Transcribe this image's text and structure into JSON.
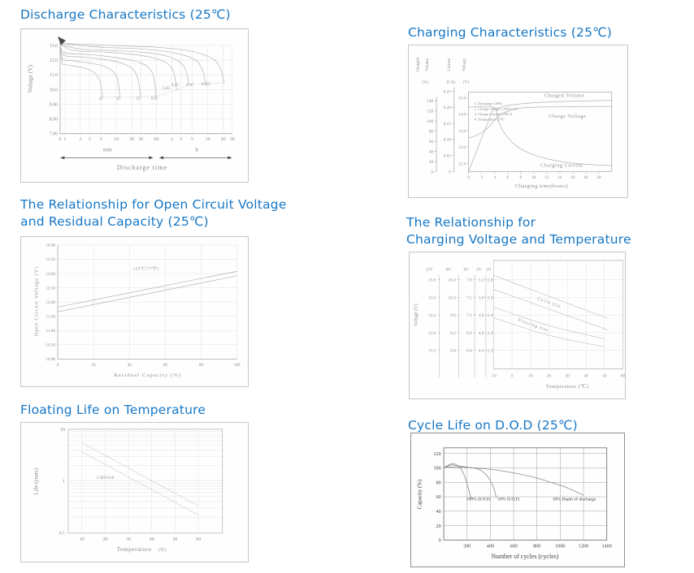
{
  "theme": {
    "page_bg": "#ffffff",
    "title_color": "#1677c5",
    "card_border": "#c6c6c6",
    "card_border_dark": "#8f8f8f",
    "grid": "#dcdcdc",
    "axis": "#acacac",
    "curve": "#b2b2b2",
    "text": "#8a8a8a",
    "dark_grid": "#9e9e9e",
    "dark_axis": "#767676",
    "dark_curve": "#8a8a8a",
    "dark_text": "#3d3d3d",
    "arrow": "#4a4a4a"
  },
  "chart_data": [
    {
      "id": "discharge",
      "type": "line",
      "title": "Discharge Characteristics (25℃)",
      "ylabel": "Voltage (V)",
      "xlabel": "Discharge time",
      "x_unit_segments": [
        "min",
        "h"
      ],
      "y_ticks": [
        13,
        12,
        11,
        10,
        9,
        8,
        7
      ],
      "y_tick_labels": [
        "13.0",
        "12.0",
        "11.0",
        "10.0",
        "9.00",
        "8.00",
        "7.00"
      ],
      "x_tick_minutes": [
        0,
        1,
        2,
        3,
        5,
        10,
        20,
        30,
        60,
        120,
        180,
        300,
        600,
        1200,
        1800
      ],
      "x_tick_labels": [
        "0",
        "1",
        "2",
        "3",
        "5",
        "10",
        "20",
        "30",
        "60",
        "2",
        "3",
        "5",
        "10",
        "20",
        "30"
      ],
      "series": [
        {
          "label": "3C",
          "label_at": [
            5,
            9.3
          ],
          "points": [
            [
              0,
              13.1
            ],
            [
              0.4,
              11.85
            ],
            [
              1,
              11.7
            ],
            [
              2,
              11.52
            ],
            [
              3,
              11.33
            ],
            [
              4,
              11.05
            ],
            [
              4.8,
              10.55
            ],
            [
              5.2,
              9.9
            ],
            [
              5.4,
              9.5
            ]
          ]
        },
        {
          "label": "2C",
          "label_at": [
            11,
            9.3
          ],
          "points": [
            [
              0,
              13.1
            ],
            [
              0.5,
              12.1
            ],
            [
              1.5,
              11.95
            ],
            [
              3,
              11.8
            ],
            [
              5,
              11.65
            ],
            [
              7,
              11.45
            ],
            [
              9,
              11.15
            ],
            [
              10.5,
              10.7
            ],
            [
              11.5,
              9.9
            ],
            [
              11.8,
              9.5
            ]
          ]
        },
        {
          "label": "1C",
          "label_at": [
            27,
            9.3
          ],
          "points": [
            [
              0,
              13.1
            ],
            [
              0.7,
              12.35
            ],
            [
              2,
              12.22
            ],
            [
              5,
              12.08
            ],
            [
              10,
              11.9
            ],
            [
              16,
              11.65
            ],
            [
              22,
              11.3
            ],
            [
              26,
              10.8
            ],
            [
              28.5,
              10.0
            ],
            [
              29.5,
              9.5
            ]
          ]
        },
        {
          "label": "0.6C",
          "label_at": [
            56,
            9.32
          ],
          "points": [
            [
              0,
              13.1
            ],
            [
              1,
              12.5
            ],
            [
              3,
              12.38
            ],
            [
              8,
              12.22
            ],
            [
              18,
              12.02
            ],
            [
              30,
              11.8
            ],
            [
              42,
              11.5
            ],
            [
              52,
              11.0
            ],
            [
              57,
              10.2
            ],
            [
              59,
              9.55
            ]
          ]
        },
        {
          "label": "0.3C",
          "label_at": [
            95,
            10.02
          ],
          "points": [
            [
              0,
              13.1
            ],
            [
              1.5,
              12.65
            ],
            [
              6,
              12.55
            ],
            [
              20,
              12.4
            ],
            [
              50,
              12.18
            ],
            [
              85,
              11.9
            ],
            [
              115,
              11.55
            ],
            [
              135,
              11.0
            ],
            [
              145,
              10.3
            ],
            [
              148,
              9.95
            ]
          ]
        },
        {
          "label": "0.2C",
          "label_at": [
            140,
            10.25
          ],
          "points": [
            [
              0,
              13.1
            ],
            [
              2,
              12.75
            ],
            [
              10,
              12.65
            ],
            [
              40,
              12.5
            ],
            [
              90,
              12.3
            ],
            [
              150,
              12.0
            ],
            [
              200,
              11.65
            ],
            [
              235,
              11.1
            ],
            [
              252,
              10.55
            ],
            [
              258,
              10.35
            ]
          ]
        },
        {
          "label": "0.1C",
          "label_at": [
            272,
            10.25
          ],
          "points": [
            [
              0,
              13.15
            ],
            [
              4,
              12.9
            ],
            [
              25,
              12.78
            ],
            [
              90,
              12.6
            ],
            [
              200,
              12.35
            ],
            [
              330,
              12.05
            ],
            [
              430,
              11.65
            ],
            [
              500,
              11.1
            ],
            [
              535,
              10.6
            ],
            [
              545,
              10.4
            ]
          ]
        },
        {
          "label": "0.05C",
          "label_at": [
            560,
            10.28
          ],
          "points": [
            [
              0,
              13.15
            ],
            [
              8,
              13.0
            ],
            [
              60,
              12.88
            ],
            [
              220,
              12.68
            ],
            [
              450,
              12.42
            ],
            [
              750,
              12.1
            ],
            [
              980,
              11.7
            ],
            [
              1120,
              11.2
            ],
            [
              1210,
              10.7
            ],
            [
              1245,
              10.45
            ]
          ]
        }
      ],
      "cutoff_connector": [
        [
          5.4,
          9.5
        ],
        [
          11.8,
          9.5
        ],
        [
          29.5,
          9.5
        ],
        [
          59,
          9.55
        ],
        [
          148,
          9.95
        ],
        [
          258,
          10.35
        ],
        [
          545,
          10.4
        ],
        [
          1245,
          10.45
        ]
      ]
    },
    {
      "id": "charging",
      "type": "line",
      "title": "Charging Characteristics (25℃)",
      "xlabel": "Charging time(hours)",
      "x_ticks": [
        0,
        2,
        4,
        6,
        8,
        10,
        12,
        14,
        16,
        18,
        20
      ],
      "axes": [
        {
          "name_lines": [
            "Charged",
            "Volume"
          ],
          "unit": "(%)",
          "ticks": [
            "0",
            "20",
            "40",
            "60",
            "80",
            "100",
            "120",
            "140"
          ],
          "tick_values": [
            0,
            20,
            40,
            60,
            80,
            100,
            120,
            140
          ]
        },
        {
          "name_lines": [
            "Current"
          ],
          "unit": "(CA)",
          "ticks": [
            "0",
            "0.05",
            "0.10",
            "0.15",
            "0.20",
            "0.25"
          ],
          "tick_values": [
            0,
            0.05,
            0.1,
            0.15,
            0.2,
            0.25
          ]
        },
        {
          "name_lines": [
            "Voltage"
          ],
          "unit": "(V)",
          "ticks": [
            "11.0",
            "12.0",
            "13.0",
            "14.0",
            "15.0"
          ],
          "tick_values": [
            11,
            12,
            13,
            14,
            15
          ]
        }
      ],
      "notes": [
        "1. Discharge 100%",
        "2. Charge voltage 2.40V/cell",
        "3. Charge current 0.20CA",
        "4. Temperature 25℃"
      ],
      "series": [
        {
          "label": "Charged Volume",
          "axis": "percent",
          "points": [
            [
              0,
              0
            ],
            [
              1,
              33
            ],
            [
              2,
              66
            ],
            [
              3,
              99
            ],
            [
              3.7,
              122
            ],
            [
              4.6,
              126
            ],
            [
              6,
              131
            ],
            [
              8,
              134
            ],
            [
              11,
              137
            ],
            [
              15,
              139
            ],
            [
              19,
              140
            ],
            [
              22,
              141
            ]
          ]
        },
        {
          "label": "Charge Voltage",
          "axis": "volt",
          "points": [
            [
              0,
              12.55
            ],
            [
              1,
              12.68
            ],
            [
              2,
              12.88
            ],
            [
              3,
              13.18
            ],
            [
              3.8,
              13.55
            ],
            [
              4.5,
              13.85
            ],
            [
              5.5,
              14.1
            ],
            [
              7,
              14.3
            ],
            [
              9,
              14.4
            ],
            [
              13,
              14.44
            ],
            [
              18,
              14.46
            ],
            [
              22,
              14.47
            ]
          ]
        },
        {
          "label": "Charging Current",
          "axis": "ca",
          "points": [
            [
              0,
              0.2
            ],
            [
              3.8,
              0.2
            ],
            [
              4.5,
              0.16
            ],
            [
              5.5,
              0.12
            ],
            [
              7,
              0.085
            ],
            [
              9,
              0.06
            ],
            [
              12,
              0.04
            ],
            [
              16,
              0.026
            ],
            [
              22,
              0.018
            ]
          ]
        }
      ]
    },
    {
      "id": "ocv",
      "type": "line",
      "title": "The Relationship for Open Circuit Voltage\nand Residual Capacity (25℃)",
      "ylabel": "Open Circuit Voltage (V)",
      "xlabel": "Residual Capacity (%)",
      "annotation": "(25℃/77℉)",
      "y_ticks": [
        14,
        13.5,
        13,
        12.5,
        12,
        11.5,
        11,
        10.5,
        10
      ],
      "y_tick_labels": [
        "14.00",
        "13.50",
        "13.00",
        "12.50",
        "12.00",
        "11.50",
        "11.00",
        "10.50",
        "10.00"
      ],
      "x_ticks": [
        0,
        20,
        40,
        60,
        80,
        100
      ],
      "series": [
        {
          "label": "upper",
          "points": [
            [
              0,
              11.82
            ],
            [
              100,
              13.08
            ]
          ]
        },
        {
          "label": "lower",
          "points": [
            [
              0,
              11.66
            ],
            [
              100,
              12.92
            ]
          ]
        }
      ]
    },
    {
      "id": "charge_temp",
      "type": "line",
      "title": "The Relationship for\nCharging Voltage and Temperature",
      "ylabel": "Voltage (V)",
      "xlabel": "Temperature (℃)",
      "column_headers": [
        "12V",
        "8V",
        "6V",
        "4V",
        "2V"
      ],
      "scale_rows": [
        [
          "15.6",
          "10.4",
          "7.8",
          "5.2",
          "2.6"
        ],
        [
          "15.0",
          "10.0",
          "7.5",
          "5.0",
          "2.5"
        ],
        [
          "14.4",
          "9.6",
          "7.2",
          "4.8",
          "2.4"
        ],
        [
          "13.8",
          "9.2",
          "6.9",
          "4.6",
          "2.3"
        ],
        [
          "13.2",
          "8.8",
          "6.6",
          "4.4",
          "2.2"
        ]
      ],
      "x_ticks": [
        -10,
        0,
        10,
        20,
        30,
        40,
        50,
        60
      ],
      "bands": [
        {
          "label": "Cycle Use",
          "upper": [
            [
              -10,
              2.625
            ],
            [
              52,
              2.38
            ]
          ],
          "lower": [
            [
              -10,
              2.545
            ],
            [
              52,
              2.315
            ]
          ]
        },
        {
          "label": "Floating Use",
          "upper": [
            [
              -10,
              2.445
            ],
            [
              20,
              2.34
            ],
            [
              50,
              2.265
            ]
          ],
          "lower": [
            [
              -10,
              2.385
            ],
            [
              20,
              2.285
            ],
            [
              50,
              2.22
            ]
          ]
        }
      ]
    },
    {
      "id": "float_life",
      "type": "line",
      "title": "Floating Life on Temperature",
      "ylabel": "Life (years)",
      "xlabel": "Temperature",
      "xlabel_unit": "(℃)",
      "y_ticks": [
        10,
        1,
        0.1
      ],
      "y_tick_labels": [
        "10",
        "1",
        "0.1"
      ],
      "x_ticks": [
        10,
        20,
        30,
        40,
        50,
        60
      ],
      "band_label": "2.30V/Cell",
      "band": {
        "upper": [
          [
            10,
            5.5
          ],
          [
            60,
            0.33
          ]
        ],
        "lower": [
          [
            10,
            3.7
          ],
          [
            60,
            0.22
          ]
        ]
      }
    },
    {
      "id": "cycle_life",
      "type": "line",
      "title": "Cycle Life on D.O.D (25℃)",
      "ylabel": "Capacity (%)",
      "xlabel": "Number of cycles (cycles)",
      "y_ticks": [
        0,
        20,
        40,
        60,
        80,
        100,
        120
      ],
      "x_ticks": [
        200,
        400,
        600,
        800,
        1000,
        1200,
        1400
      ],
      "series": [
        {
          "label": "100% D.O.D.",
          "label_at": [
            300,
            55
          ],
          "points": [
            [
              0,
              100
            ],
            [
              40,
              104
            ],
            [
              80,
              106
            ],
            [
              110,
              104
            ],
            [
              140,
              100
            ],
            [
              170,
              92
            ],
            [
              200,
              78
            ],
            [
              225,
              63
            ],
            [
              235,
              57
            ]
          ]
        },
        {
          "label": "50% D.O.D.",
          "label_at": [
            560,
            55
          ],
          "points": [
            [
              0,
              100
            ],
            [
              60,
              104
            ],
            [
              120,
              103
            ],
            [
              200,
              101
            ],
            [
              280,
              99
            ],
            [
              340,
              94
            ],
            [
              390,
              85
            ],
            [
              430,
              72
            ],
            [
              452,
              58
            ]
          ]
        },
        {
          "label": "30% Depth of  discharge",
          "label_at": [
            1120,
            55
          ],
          "points": [
            [
              0,
              101
            ],
            [
              150,
              101
            ],
            [
              300,
              99.5
            ],
            [
              450,
              97
            ],
            [
              600,
              93
            ],
            [
              750,
              88
            ],
            [
              900,
              81
            ],
            [
              1050,
              73
            ],
            [
              1200,
              62
            ]
          ]
        }
      ]
    }
  ]
}
